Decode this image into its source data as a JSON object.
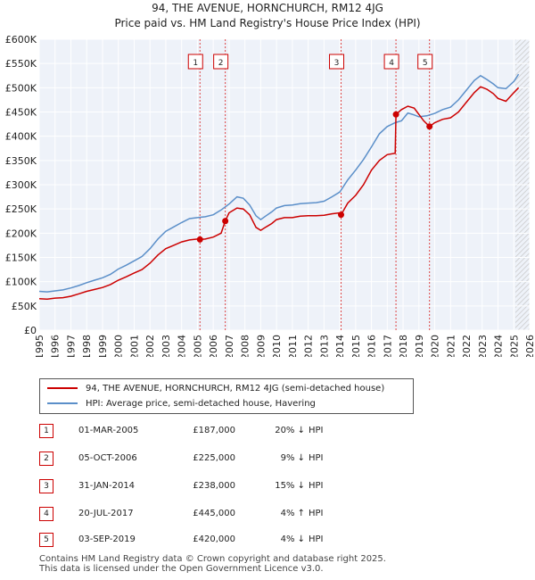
{
  "header": {
    "title": "94, THE AVENUE, HORNCHURCH, RM12 4JG",
    "subtitle": "Price paid vs. HM Land Registry's House Price Index (HPI)"
  },
  "legend": {
    "items": [
      {
        "label": "94, THE AVENUE, HORNCHURCH, RM12 4JG (semi-detached house)",
        "color": "#cc0000"
      },
      {
        "label": "HPI: Average price, semi-detached house, Havering",
        "color": "#5b8fc9"
      }
    ]
  },
  "transactions": [
    {
      "num": "1",
      "date": "01-MAR-2005",
      "price": "£187,000",
      "pct": "20% ↓",
      "hpi": "HPI"
    },
    {
      "num": "2",
      "date": "05-OCT-2006",
      "price": "£225,000",
      "pct": "9% ↓",
      "hpi": "HPI"
    },
    {
      "num": "3",
      "date": "31-JAN-2014",
      "price": "£238,000",
      "pct": "15% ↓",
      "hpi": "HPI"
    },
    {
      "num": "4",
      "date": "20-JUL-2017",
      "price": "£445,000",
      "pct": "4% ↑",
      "hpi": "HPI"
    },
    {
      "num": "5",
      "date": "03-SEP-2019",
      "price": "£420,000",
      "pct": "4% ↓",
      "hpi": "HPI"
    }
  ],
  "footer": {
    "line1": "Contains HM Land Registry data © Crown copyright and database right 2025.",
    "line2": "This data is licensed under the Open Government Licence v3.0."
  },
  "chart_data": {
    "type": "line",
    "xlim": [
      1995,
      2026
    ],
    "ylim": [
      0,
      600000
    ],
    "y_ticks": [
      0,
      50000,
      100000,
      150000,
      200000,
      250000,
      300000,
      350000,
      400000,
      450000,
      500000,
      550000,
      600000
    ],
    "y_tick_labels": [
      "£0",
      "£50K",
      "£100K",
      "£150K",
      "£200K",
      "£250K",
      "£300K",
      "£350K",
      "£400K",
      "£450K",
      "£500K",
      "£550K",
      "£600K"
    ],
    "x_ticks": [
      1995,
      1996,
      1997,
      1998,
      1999,
      2000,
      2001,
      2002,
      2003,
      2004,
      2005,
      2006,
      2007,
      2008,
      2009,
      2010,
      2011,
      2012,
      2013,
      2014,
      2015,
      2016,
      2017,
      2018,
      2019,
      2020,
      2021,
      2022,
      2023,
      2024,
      2025,
      2026
    ],
    "x_tick_labels": [
      "1995",
      "1996",
      "1997",
      "1998",
      "1999",
      "2000",
      "2001",
      "2002",
      "2003",
      "2004",
      "2005",
      "2006",
      "2007",
      "2008",
      "2009",
      "2010",
      "2011",
      "2012",
      "2013",
      "2014",
      "2015",
      "2016",
      "2017",
      "2018",
      "2019",
      "2020",
      "2021",
      "2022",
      "2023",
      "2024",
      "2025",
      "2026"
    ],
    "grid": true,
    "forecast_from": 2025.1,
    "series": [
      {
        "name": "94, THE AVENUE, HORNCHURCH, RM12 4JG (semi-detached house)",
        "color": "#cc0000",
        "x": [
          1995.0,
          1995.5,
          1996.0,
          1996.5,
          1997.0,
          1997.5,
          1998.0,
          1998.5,
          1999.0,
          1999.5,
          2000.0,
          2000.5,
          2001.0,
          2001.5,
          2002.0,
          2002.5,
          2003.0,
          2003.5,
          2004.0,
          2004.5,
          2005.0,
          2005.16,
          2005.5,
          2006.0,
          2006.5,
          2006.76,
          2007.0,
          2007.5,
          2007.9,
          2008.3,
          2008.7,
          2009.0,
          2009.3,
          2009.7,
          2010.0,
          2010.5,
          2011.0,
          2011.5,
          2012.0,
          2012.5,
          2013.0,
          2013.5,
          2014.0,
          2014.08,
          2014.5,
          2015.0,
          2015.5,
          2016.0,
          2016.5,
          2017.0,
          2017.5,
          2017.55,
          2017.9,
          2018.3,
          2018.7,
          2019.0,
          2019.3,
          2019.67,
          2020.0,
          2020.5,
          2021.0,
          2021.5,
          2022.0,
          2022.5,
          2022.9,
          2023.3,
          2023.7,
          2024.0,
          2024.5,
          2025.0,
          2025.3
        ],
        "y": [
          65000,
          64000,
          66000,
          67000,
          70000,
          75000,
          80000,
          84000,
          88000,
          94000,
          103000,
          110000,
          118000,
          125000,
          138000,
          155000,
          168000,
          175000,
          182000,
          186000,
          188000,
          187000,
          188000,
          192000,
          200000,
          225000,
          242000,
          252000,
          250000,
          238000,
          212000,
          206000,
          212000,
          220000,
          228000,
          232000,
          232000,
          235000,
          236000,
          236000,
          237000,
          240000,
          242000,
          238000,
          262000,
          278000,
          300000,
          330000,
          350000,
          362000,
          365000,
          445000,
          455000,
          462000,
          458000,
          445000,
          432000,
          420000,
          428000,
          435000,
          438000,
          450000,
          470000,
          490000,
          502000,
          497000,
          488000,
          478000,
          472000,
          490000,
          500000
        ]
      },
      {
        "name": "HPI: Average price, semi-detached house, Havering",
        "color": "#5b8fc9",
        "x": [
          1995.0,
          1995.5,
          1996.0,
          1996.5,
          1997.0,
          1997.5,
          1998.0,
          1998.5,
          1999.0,
          1999.5,
          2000.0,
          2000.5,
          2001.0,
          2001.5,
          2002.0,
          2002.5,
          2003.0,
          2003.5,
          2004.0,
          2004.5,
          2005.0,
          2005.5,
          2006.0,
          2006.5,
          2007.0,
          2007.5,
          2007.9,
          2008.3,
          2008.7,
          2009.0,
          2009.3,
          2009.7,
          2010.0,
          2010.5,
          2011.0,
          2011.5,
          2012.0,
          2012.5,
          2013.0,
          2013.5,
          2014.0,
          2014.5,
          2015.0,
          2015.5,
          2016.0,
          2016.5,
          2017.0,
          2017.5,
          2017.9,
          2018.3,
          2018.7,
          2019.0,
          2019.5,
          2020.0,
          2020.5,
          2021.0,
          2021.5,
          2022.0,
          2022.5,
          2022.9,
          2023.3,
          2023.7,
          2024.0,
          2024.5,
          2025.0,
          2025.3
        ],
        "y": [
          80000,
          79000,
          81000,
          83000,
          87000,
          92000,
          98000,
          103000,
          108000,
          115000,
          126000,
          134000,
          143000,
          152000,
          168000,
          188000,
          204000,
          213000,
          222000,
          230000,
          232000,
          234000,
          238000,
          248000,
          260000,
          275000,
          272000,
          258000,
          236000,
          228000,
          235000,
          244000,
          252000,
          257000,
          258000,
          261000,
          262000,
          263000,
          266000,
          275000,
          285000,
          310000,
          330000,
          352000,
          378000,
          405000,
          420000,
          428000,
          432000,
          448000,
          444000,
          440000,
          442000,
          447000,
          455000,
          460000,
          475000,
          495000,
          515000,
          525000,
          517000,
          508000,
          500000,
          498000,
          513000,
          528000
        ]
      }
    ],
    "events": [
      {
        "label": "1",
        "x": 2005.16,
        "y": 187000
      },
      {
        "label": "2",
        "x": 2006.76,
        "y": 225000
      },
      {
        "label": "3",
        "x": 2014.08,
        "y": 238000
      },
      {
        "label": "4",
        "x": 2017.55,
        "y": 445000
      },
      {
        "label": "5",
        "x": 2019.67,
        "y": 420000
      }
    ]
  }
}
